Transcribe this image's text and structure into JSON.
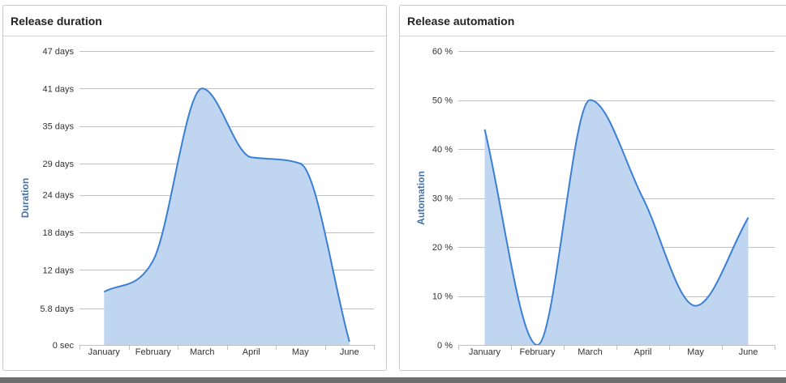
{
  "panels": {
    "duration": {
      "title": "Release duration"
    },
    "automation": {
      "title": "Release automation"
    }
  },
  "colors": {
    "line": "#3a7fd5",
    "area": "#c0d6f0",
    "grid": "#c0c0c0",
    "axis_title": "#4572a7"
  },
  "chart_data": [
    {
      "type": "area",
      "title": "Release duration",
      "xlabel": "",
      "ylabel": "Duration",
      "categories": [
        "January",
        "February",
        "March",
        "April",
        "May",
        "June"
      ],
      "y_ticks": [
        {
          "value": 0,
          "label": "0 sec"
        },
        {
          "value": 5.8,
          "label": "5.8 days"
        },
        {
          "value": 12,
          "label": "12 days"
        },
        {
          "value": 18,
          "label": "18 days"
        },
        {
          "value": 24,
          "label": "24 days"
        },
        {
          "value": 29,
          "label": "29 days"
        },
        {
          "value": 35,
          "label": "35 days"
        },
        {
          "value": 41,
          "label": "41 days"
        },
        {
          "value": 47,
          "label": "47 days"
        }
      ],
      "ylim": [
        0,
        47
      ],
      "grid": true,
      "series": [
        {
          "values": [
            8.5,
            13.5,
            41,
            30,
            29,
            0.5
          ]
        }
      ]
    },
    {
      "type": "area",
      "title": "Release automation",
      "xlabel": "",
      "ylabel": "Automation",
      "categories": [
        "January",
        "February",
        "March",
        "April",
        "May",
        "June"
      ],
      "y_ticks": [
        {
          "value": 0,
          "label": "0 %"
        },
        {
          "value": 10,
          "label": "10 %"
        },
        {
          "value": 20,
          "label": "20 %"
        },
        {
          "value": 30,
          "label": "30 %"
        },
        {
          "value": 40,
          "label": "40 %"
        },
        {
          "value": 50,
          "label": "50 %"
        },
        {
          "value": 60,
          "label": "60 %"
        }
      ],
      "ylim": [
        0,
        60
      ],
      "grid": true,
      "series": [
        {
          "values": [
            44,
            0,
            50,
            30,
            8,
            26
          ]
        }
      ]
    }
  ]
}
